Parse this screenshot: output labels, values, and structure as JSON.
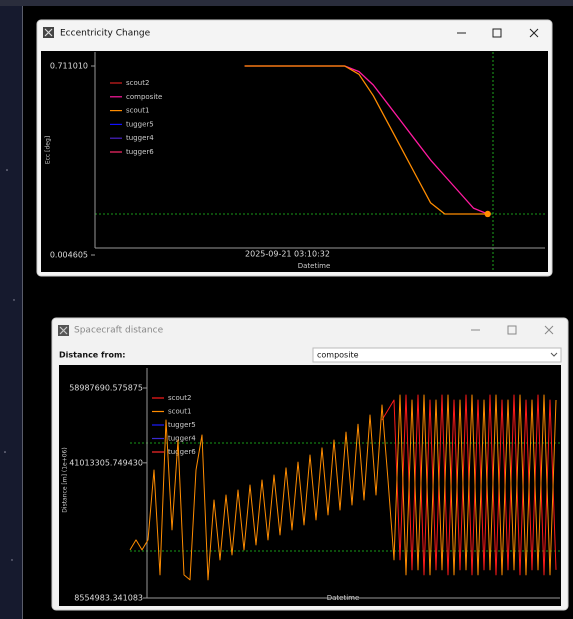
{
  "windows": [
    {
      "title": "Eccentricity Change"
    },
    {
      "title": "Spacecraft distance",
      "distance_from_label": "Distance from:",
      "dropdown_value": "composite"
    }
  ],
  "chart_data": [
    {
      "type": "line",
      "ylabel": "Ecc [deg]",
      "xlabel": "Datetime",
      "categories": [
        null,
        null,
        null,
        null,
        null,
        null,
        null,
        null,
        null,
        null,
        null,
        null,
        null,
        null,
        null,
        "2025-09-21 03:10:32",
        null,
        null,
        null,
        null,
        null,
        null,
        null,
        null,
        null,
        null,
        null,
        null,
        null,
        null,
        null,
        null,
        null,
        null
      ],
      "ylim": [
        0.0046,
        0.7633
      ],
      "yticks": [
        {
          "value": 0.71101,
          "label": "0.711010"
        },
        {
          "value": 0.004605,
          "label": "0.004605"
        }
      ],
      "series": [
        {
          "name": "scout2",
          "color": "#d62020",
          "values": [
            null,
            null,
            null,
            null,
            null,
            null,
            null,
            null,
            null,
            null,
            null,
            null,
            null,
            null,
            null,
            null,
            null,
            null,
            null,
            null,
            null,
            null,
            null,
            null,
            null,
            null,
            null,
            null,
            null,
            null,
            null,
            null,
            null,
            null
          ]
        },
        {
          "name": "composite",
          "color": "#ff1aa0",
          "values": [
            null,
            null,
            null,
            null,
            null,
            null,
            null,
            null,
            null,
            null,
            null,
            null,
            0.711,
            0.711,
            0.711,
            0.711,
            0.711,
            0.711,
            0.711,
            0.711,
            0.69,
            0.64,
            0.57,
            0.5,
            0.43,
            0.36,
            0.3,
            0.24,
            0.18,
            0.158,
            null,
            null,
            null,
            null
          ]
        },
        {
          "name": "scout1",
          "color": "#ff8c00",
          "marker": "end",
          "values": [
            null,
            null,
            null,
            null,
            null,
            null,
            null,
            null,
            null,
            null,
            null,
            null,
            0.711,
            0.711,
            0.711,
            0.711,
            0.711,
            0.711,
            0.711,
            0.711,
            0.68,
            0.6,
            0.5,
            0.4,
            0.3,
            0.2,
            0.158,
            0.158,
            0.158,
            0.158,
            null,
            null,
            null,
            null
          ]
        },
        {
          "name": "tugger5",
          "color": "#1010ff",
          "values": [
            null,
            null,
            null,
            null,
            null,
            null,
            null,
            null,
            null,
            null,
            null,
            null,
            null,
            null,
            null,
            null,
            null,
            null,
            null,
            null,
            null,
            null,
            null,
            null,
            null,
            null,
            null,
            null,
            null,
            null,
            null,
            null,
            null,
            null
          ]
        },
        {
          "name": "tugger4",
          "color": "#4a22c8",
          "values": [
            null,
            null,
            null,
            null,
            null,
            null,
            null,
            null,
            null,
            null,
            null,
            null,
            null,
            null,
            null,
            null,
            null,
            null,
            null,
            null,
            null,
            null,
            null,
            null,
            null,
            null,
            null,
            null,
            null,
            null,
            null,
            null,
            null,
            null
          ]
        },
        {
          "name": "tugger6",
          "color": "#ff2a6a",
          "values": [
            null,
            null,
            null,
            null,
            null,
            null,
            null,
            null,
            null,
            null,
            null,
            null,
            null,
            null,
            null,
            null,
            null,
            null,
            null,
            null,
            null,
            null,
            null,
            null,
            null,
            null,
            null,
            null,
            null,
            null,
            null,
            null,
            null,
            null
          ]
        }
      ]
    },
    {
      "type": "line",
      "ylabel": "Distance [m] (1e+06)",
      "xlabel": "Datetime",
      "categories": [
        null,
        null,
        null,
        null,
        null,
        null,
        null,
        null,
        null,
        null,
        null,
        null,
        null,
        null,
        null,
        null,
        null,
        null,
        null,
        null,
        null,
        null,
        null,
        null,
        null,
        null,
        null,
        null,
        null,
        null,
        null,
        null,
        null,
        null,
        null,
        null,
        null,
        null,
        null,
        null,
        null,
        null,
        null,
        null,
        null,
        null,
        null,
        null,
        null,
        null,
        null,
        null,
        null,
        null,
        null,
        null,
        null,
        null,
        null,
        null,
        null,
        null,
        null,
        null,
        null,
        null,
        null,
        null,
        null,
        null,
        null,
        null
      ],
      "ylim": [
        8554983.341083,
        63790000
      ],
      "yticks": [
        {
          "value": 58987690.575875,
          "label": "58987690.575875"
        },
        {
          "value": 41013305.74943,
          "label": "41013305.749430"
        },
        {
          "value": 8554983.341083,
          "label": "8554983.341083"
        }
      ],
      "series": [
        {
          "name": "scout2",
          "color": "#ff1a1a",
          "values": [
            null,
            null,
            null,
            null,
            null,
            null,
            null,
            null,
            null,
            null,
            null,
            null,
            null,
            null,
            null,
            null,
            null,
            null,
            null,
            null,
            null,
            null,
            null,
            null,
            null,
            null,
            null,
            null,
            null,
            null,
            null,
            null,
            null,
            null,
            null,
            null,
            null,
            null,
            null,
            null,
            null,
            null,
            51300000,
            53700000,
            56100000,
            17700000,
            57300000,
            15300000,
            57300000,
            14100000,
            56100000,
            15300000,
            57300000,
            14100000,
            56100000,
            15300000,
            57300000,
            14100000,
            56100000,
            15300000,
            57300000,
            14100000,
            56100000,
            15300000,
            57300000,
            14100000,
            56100000,
            15300000,
            57300000,
            14100000,
            56100000,
            15300000
          ]
        },
        {
          "name": "scout1",
          "color": "#ff8c00",
          "values": [
            20100000,
            22500000,
            20100000,
            22500000,
            39300000,
            14100000,
            51300000,
            24900000,
            46500000,
            14100000,
            12900000,
            39300000,
            47700000,
            12900000,
            32100000,
            17700000,
            33300000,
            18900000,
            34500000,
            20100000,
            35700000,
            21300000,
            36900000,
            22500000,
            38100000,
            23700000,
            39800000,
            24900000,
            41200000,
            26100000,
            42900000,
            27300000,
            44600000,
            28500000,
            46500000,
            29700000,
            48400000,
            30900000,
            50300000,
            32100000,
            52500000,
            33300000,
            54900000,
            36900000,
            17700000,
            57300000,
            14100000,
            56100000,
            15300000,
            57300000,
            14100000,
            56100000,
            15300000,
            57300000,
            14100000,
            56100000,
            15300000,
            57300000,
            14100000,
            56100000,
            15300000,
            57300000,
            14100000,
            56100000,
            15300000,
            57300000,
            14100000,
            56100000,
            15300000,
            57300000,
            14100000,
            56100000
          ]
        },
        {
          "name": "tugger5",
          "color": "#1a1aff",
          "values": [
            null,
            null,
            null,
            null,
            null,
            null,
            null,
            null,
            null,
            null,
            null,
            null,
            null,
            null,
            null,
            null,
            null,
            null,
            null,
            null,
            null,
            null,
            null,
            null,
            null,
            null,
            null,
            null,
            null,
            null,
            null,
            null,
            null,
            null,
            null,
            null,
            null,
            null,
            null,
            null,
            null,
            null,
            null,
            null,
            null,
            null,
            null,
            null,
            null,
            null,
            null,
            null,
            null,
            null,
            null,
            null,
            null,
            null,
            null,
            null,
            null,
            null,
            null,
            null,
            null,
            null,
            null,
            null,
            null,
            null,
            null,
            null
          ]
        },
        {
          "name": "tugger4",
          "color": "#3a2ad0",
          "values": [
            null,
            null,
            null,
            null,
            null,
            null,
            null,
            null,
            null,
            null,
            null,
            null,
            null,
            null,
            null,
            null,
            null,
            null,
            null,
            null,
            null,
            null,
            null,
            null,
            null,
            null,
            null,
            null,
            null,
            null,
            null,
            null,
            null,
            null,
            null,
            null,
            null,
            null,
            null,
            null,
            null,
            null,
            null,
            null,
            null,
            null,
            null,
            null,
            null,
            null,
            null,
            null,
            null,
            null,
            null,
            null,
            null,
            null,
            null,
            null,
            null,
            null,
            null,
            null,
            null,
            null,
            null,
            null,
            null,
            null,
            null,
            null
          ]
        },
        {
          "name": "tugger6",
          "color": "#ff2a2a",
          "values": [
            null,
            null,
            null,
            null,
            null,
            null,
            null,
            null,
            null,
            null,
            null,
            null,
            null,
            null,
            null,
            null,
            null,
            null,
            null,
            null,
            null,
            null,
            null,
            null,
            null,
            null,
            null,
            null,
            null,
            null,
            null,
            null,
            null,
            null,
            null,
            null,
            null,
            null,
            null,
            null,
            null,
            null,
            null,
            null,
            null,
            null,
            null,
            null,
            null,
            null,
            null,
            null,
            null,
            null,
            null,
            null,
            null,
            null,
            null,
            null,
            null,
            null,
            null,
            null,
            null,
            null,
            null,
            null,
            null,
            null,
            null,
            null
          ]
        }
      ]
    }
  ]
}
